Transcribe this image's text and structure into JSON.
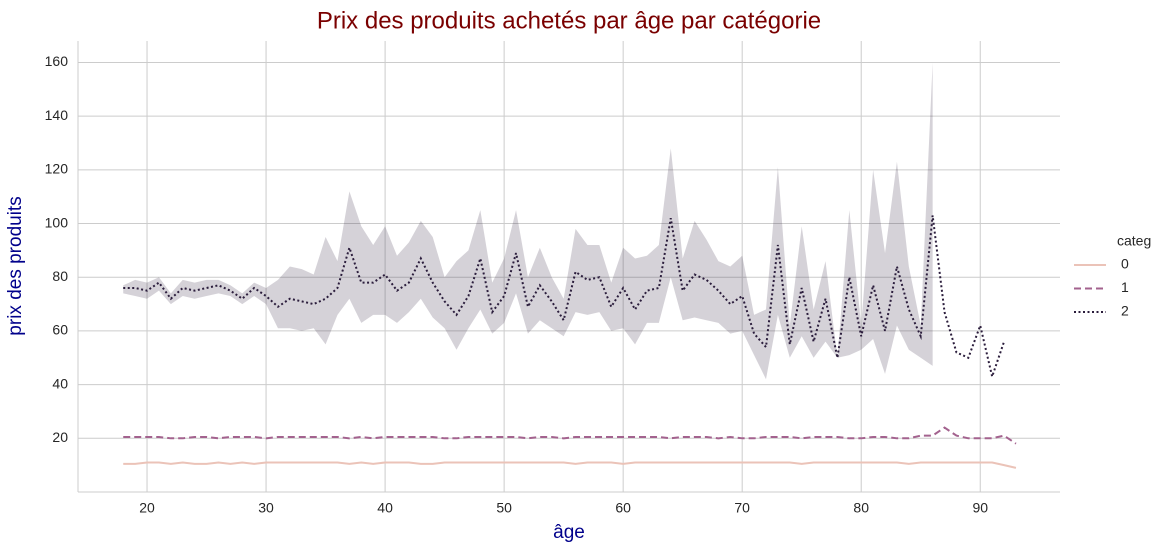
{
  "chart_data": {
    "type": "line",
    "title": "Prix des produits achetés par âge par catégorie",
    "xlabel": "âge",
    "ylabel": "prix des produits",
    "legend_title": "categ",
    "legend": "right",
    "grid": true,
    "x": [
      18,
      19,
      20,
      21,
      22,
      23,
      24,
      25,
      26,
      27,
      28,
      29,
      30,
      31,
      32,
      33,
      34,
      35,
      36,
      37,
      38,
      39,
      40,
      41,
      42,
      43,
      44,
      45,
      46,
      47,
      48,
      49,
      50,
      51,
      52,
      53,
      54,
      55,
      56,
      57,
      58,
      59,
      60,
      61,
      62,
      63,
      64,
      65,
      66,
      67,
      68,
      69,
      70,
      71,
      72,
      73,
      74,
      75,
      76,
      77,
      78,
      79,
      80,
      81,
      82,
      83,
      84,
      85,
      86,
      87,
      88,
      89,
      90,
      91,
      92,
      93
    ],
    "xlim": [
      14.2,
      96.7
    ],
    "xticks": [
      20,
      30,
      40,
      50,
      60,
      70,
      80,
      90
    ],
    "ylim": [
      0,
      168
    ],
    "yticks": [
      20,
      40,
      60,
      80,
      100,
      120,
      140,
      160
    ],
    "series": [
      {
        "name": "0",
        "color": "#ebc3b8",
        "dash": "solid",
        "values": [
          10.5,
          10.5,
          11,
          11,
          10.5,
          11,
          10.5,
          10.5,
          11,
          10.5,
          11,
          10.5,
          11,
          11,
          11,
          11,
          11,
          11,
          11,
          10.5,
          11,
          10.5,
          11,
          11,
          11,
          10.5,
          10.5,
          11,
          11,
          11,
          11,
          11,
          11,
          11,
          11,
          11,
          11,
          11,
          10.5,
          11,
          11,
          11,
          10.5,
          11,
          11,
          11,
          11,
          11,
          11,
          11,
          11,
          11,
          11,
          11,
          11,
          11,
          11,
          10.5,
          11,
          11,
          11,
          11,
          11,
          11,
          11,
          11,
          10.5,
          11,
          11,
          11,
          11,
          11,
          11,
          11,
          10,
          9
        ]
      },
      {
        "name": "1",
        "color": "#a3628e",
        "dash": "dashed",
        "values": [
          20.5,
          20.5,
          20.5,
          20.5,
          20,
          20,
          20.5,
          20.5,
          20,
          20.5,
          20.5,
          20.5,
          20,
          20.5,
          20.5,
          20.5,
          20.5,
          20.5,
          20.5,
          20,
          20.5,
          20,
          20.5,
          20.5,
          20.5,
          20.5,
          20.5,
          20,
          20,
          20.5,
          20.5,
          20.5,
          20.5,
          20.5,
          20,
          20.5,
          20.5,
          20,
          20.5,
          20.5,
          20.5,
          20.5,
          20.5,
          20.5,
          20.5,
          20.5,
          20,
          20.5,
          20.5,
          20.5,
          20,
          20.5,
          20,
          20,
          20.5,
          20.5,
          20.5,
          20,
          20.5,
          20.5,
          20.5,
          20,
          20,
          20.5,
          20.5,
          20,
          20,
          21,
          21,
          24,
          21,
          20,
          20,
          20,
          21,
          18
        ]
      },
      {
        "name": "2",
        "color": "#2b1d3c",
        "dash": "dotted",
        "values": [
          76,
          76,
          75,
          78,
          72,
          76,
          75,
          76,
          77,
          75,
          72,
          76,
          73,
          69,
          72,
          71,
          70,
          72,
          76,
          91,
          78,
          78,
          81,
          75,
          78,
          87,
          78,
          71,
          66,
          73,
          87,
          67,
          73,
          89,
          69,
          77,
          71,
          64,
          82,
          79,
          80,
          69,
          76,
          68,
          75,
          76,
          102,
          75,
          81,
          79,
          75,
          70,
          73,
          59,
          54,
          92,
          55,
          76,
          56,
          72,
          50,
          80,
          58,
          77,
          60,
          84,
          68,
          58,
          103,
          67,
          52,
          50,
          62,
          43,
          56,
          null
        ],
        "upper": [
          77,
          79,
          78,
          80,
          74,
          79,
          78,
          79,
          79,
          77,
          74,
          78,
          76,
          79,
          84,
          83,
          81,
          95,
          86,
          112,
          99,
          92,
          99,
          88,
          93,
          101,
          95,
          80,
          86,
          90,
          105,
          78,
          87,
          105,
          80,
          91,
          80,
          72,
          98,
          92,
          92,
          78,
          91,
          87,
          88,
          92,
          128,
          87,
          101,
          94,
          86,
          84,
          88,
          66,
          68,
          121,
          62,
          99,
          68,
          86,
          50,
          105,
          62,
          120,
          89,
          123,
          84,
          62,
          160,
          null,
          null,
          null,
          null,
          null,
          null,
          null
        ],
        "lower": [
          74,
          73,
          72,
          75,
          70,
          73,
          72,
          73,
          74,
          73,
          70,
          73,
          70,
          61,
          61,
          60,
          61,
          55,
          66,
          72,
          63,
          66,
          66,
          63,
          67,
          72,
          65,
          61,
          53,
          61,
          68,
          59,
          63,
          74,
          59,
          64,
          61,
          58,
          67,
          66,
          67,
          60,
          61,
          55,
          63,
          63,
          80,
          64,
          65,
          64,
          63,
          59,
          60,
          51,
          42,
          66,
          50,
          58,
          50,
          56,
          50,
          51,
          53,
          57,
          44,
          62,
          53,
          50,
          47,
          null,
          null,
          null,
          null,
          null,
          null,
          null
        ]
      }
    ]
  }
}
